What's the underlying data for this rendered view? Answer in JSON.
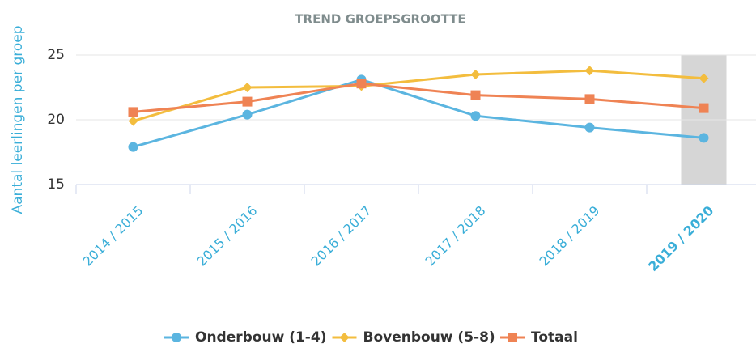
{
  "chart_data": {
    "type": "line",
    "title": "TREND GROEPSGROOTTE",
    "y_label": "Aantal leerlingen per groep",
    "categories": [
      "2014 / 2015",
      "2015 / 2016",
      "2016 / 2017",
      "2017 / 2018",
      "2018 / 2019",
      "2019 / 2020"
    ],
    "highlight_index": 5,
    "series": [
      {
        "name": "Onderbouw (1-4)",
        "color": "#5bb5e0",
        "marker": "circle",
        "values": [
          17.9,
          20.4,
          23.1,
          20.3,
          19.4,
          18.6
        ]
      },
      {
        "name": "Bovenbouw (5-8)",
        "color": "#f3bd3e",
        "marker": "diamond",
        "values": [
          19.9,
          22.5,
          22.6,
          23.5,
          23.8,
          23.2
        ]
      },
      {
        "name": "Totaal",
        "color": "#ef8354",
        "marker": "square",
        "values": [
          20.6,
          21.4,
          22.8,
          21.9,
          21.6,
          20.9
        ]
      }
    ],
    "ylim": [
      15,
      25
    ],
    "yticks": [
      15,
      20,
      25
    ],
    "grid": true,
    "legend": "bottom"
  }
}
